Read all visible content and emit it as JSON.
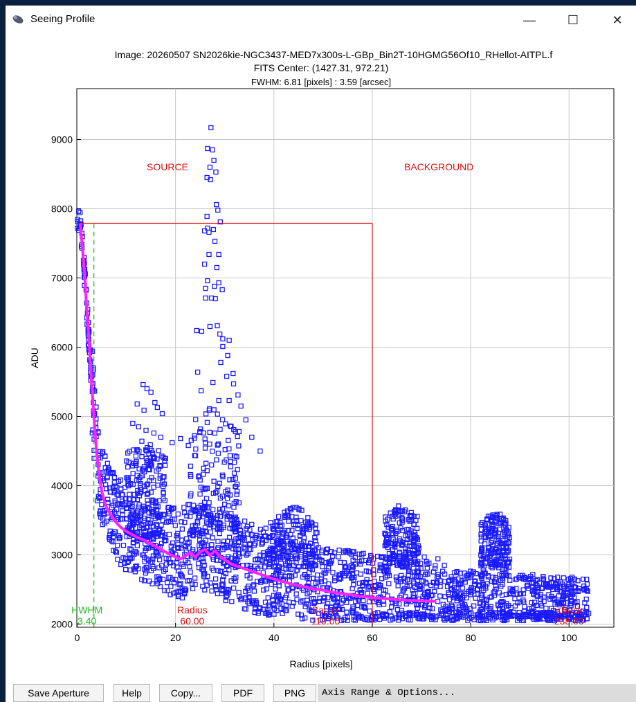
{
  "window": {
    "title": "Seeing Profile",
    "icon": "telescope-icon",
    "controls": {
      "minimize": "—",
      "maximize": "☐",
      "close": "✕"
    }
  },
  "header": {
    "image_line": "Image: 20260507 SN2026kie-NGC3437-MED7x300s-L-GBp_Bin2T-10HGMG56Of10_RHellot-AITPL.f",
    "center_line": "FITS Center: (1427.31,  972.21)",
    "fwhm_line": "FWHM: 6.81 [pixels] : 3.59 [arcsec]"
  },
  "colors": {
    "points": "#1a1aff",
    "profile": "#ff22ff",
    "aperture": "#e01010",
    "hwhm": "#22bb22",
    "grid": "#c8c8c8"
  },
  "chart_data": {
    "type": "scatter",
    "xlabel": "Radius [pixels]",
    "ylabel": "ADU",
    "xlim": [
      0,
      105
    ],
    "ylim": [
      1900,
      9600
    ],
    "xticks": [
      0,
      20,
      40,
      60,
      80,
      100
    ],
    "yticks": [
      2000,
      3000,
      4000,
      5000,
      6000,
      7000,
      8000,
      9000
    ],
    "grid": true,
    "region_labels": {
      "source": "SOURCE",
      "background": "BACKGROUND"
    },
    "markers": [
      {
        "name": "HWHM",
        "value_label": "3.40",
        "x": 3.4
      },
      {
        "name": "Radius",
        "value_label": "60.00",
        "x": 60
      },
      {
        "name": "Back>",
        "value_label": "119.00",
        "x": 119
      },
      {
        "name": "<Back",
        "value_label": "238.00",
        "x": 238
      }
    ],
    "aperture_box": {
      "x0": 0.5,
      "x1": 60,
      "y_top": 7790
    },
    "radial_profile": {
      "x": [
        0.6,
        1,
        1.5,
        2,
        2.5,
        3,
        3.5,
        4,
        4.5,
        5,
        5.5,
        6,
        7,
        8,
        9,
        10,
        11,
        12,
        13,
        14,
        15,
        16,
        17,
        18,
        19,
        20,
        21,
        22,
        23,
        24,
        25,
        26,
        27,
        28,
        29,
        30,
        31,
        32,
        34,
        36,
        38,
        40,
        42,
        44,
        46,
        48,
        50,
        52,
        54,
        56,
        58,
        60,
        62,
        64,
        66,
        68,
        70,
        72,
        73
      ],
      "y": [
        7790,
        7500,
        7050,
        6500,
        6000,
        5400,
        4900,
        4450,
        4150,
        3920,
        3780,
        3680,
        3560,
        3460,
        3390,
        3340,
        3300,
        3260,
        3230,
        3200,
        3160,
        3120,
        3080,
        3040,
        3000,
        2970,
        2940,
        2990,
        3030,
        2970,
        3040,
        3080,
        2990,
        3060,
        2980,
        2930,
        2880,
        2850,
        2800,
        2750,
        2700,
        2650,
        2610,
        2570,
        2540,
        2510,
        2490,
        2460,
        2440,
        2420,
        2400,
        2380,
        2370,
        2360,
        2350,
        2340,
        2340,
        2330,
        2330
      ]
    },
    "peak_cluster_points": [
      [
        27.2,
        9170
      ],
      [
        26.5,
        8870
      ],
      [
        27.5,
        8850
      ],
      [
        27.8,
        8700
      ],
      [
        27,
        8600
      ],
      [
        28.2,
        8530
      ],
      [
        26.4,
        8450
      ],
      [
        27.1,
        8420
      ],
      [
        28.3,
        8060
      ],
      [
        28.6,
        7980
      ],
      [
        26.4,
        7890
      ],
      [
        29.1,
        7810
      ],
      [
        26.5,
        7720
      ],
      [
        27.7,
        7700
      ],
      [
        25.9,
        7680
      ],
      [
        26.8,
        7660
      ],
      [
        28,
        7530
      ],
      [
        26.8,
        7340
      ],
      [
        28.8,
        7340
      ],
      [
        25.9,
        7200
      ],
      [
        28.4,
        7150
      ],
      [
        26.5,
        6960
      ],
      [
        28.8,
        6930
      ],
      [
        26.1,
        6850
      ],
      [
        27.9,
        6880
      ],
      [
        29.5,
        6830
      ],
      [
        26.1,
        6710
      ],
      [
        27.3,
        6710
      ],
      [
        28.1,
        6700
      ],
      [
        24.3,
        6240
      ],
      [
        25.3,
        6230
      ],
      [
        27,
        6300
      ],
      [
        28.5,
        6310
      ],
      [
        29,
        6190
      ],
      [
        29.6,
        6120
      ],
      [
        29.6,
        6010
      ],
      [
        30.9,
        6100
      ],
      [
        30.6,
        5880
      ],
      [
        29.2,
        5780
      ],
      [
        31.7,
        5620
      ],
      [
        30.4,
        5580
      ],
      [
        31.8,
        5470
      ],
      [
        28.8,
        5230
      ],
      [
        26.9,
        5110
      ],
      [
        30.9,
        5230
      ],
      [
        25.2,
        5370
      ],
      [
        27.6,
        5490
      ],
      [
        24.5,
        5640
      ],
      [
        13.4,
        5460
      ],
      [
        14.2,
        5400
      ],
      [
        15,
        5350
      ],
      [
        15.8,
        5200
      ],
      [
        12.2,
        5180
      ],
      [
        13.6,
        5090
      ],
      [
        16.3,
        5130
      ],
      [
        17.3,
        5040
      ],
      [
        11.3,
        4900
      ],
      [
        12.5,
        4850
      ],
      [
        14,
        4800
      ],
      [
        15.6,
        4760
      ],
      [
        17,
        4700
      ],
      [
        19.3,
        4620
      ],
      [
        21,
        4680
      ],
      [
        22.6,
        4580
      ],
      [
        32.7,
        5310
      ],
      [
        33.3,
        5150
      ],
      [
        34.3,
        4950
      ],
      [
        35.5,
        4700
      ],
      [
        37.2,
        4500
      ]
    ]
  },
  "toolbar": {
    "save_aperture": "Save Aperture",
    "help": "Help",
    "copy": "Copy...",
    "pdf": "PDF",
    "png": "PNG",
    "axis_range": "Axis Range & Options..."
  }
}
